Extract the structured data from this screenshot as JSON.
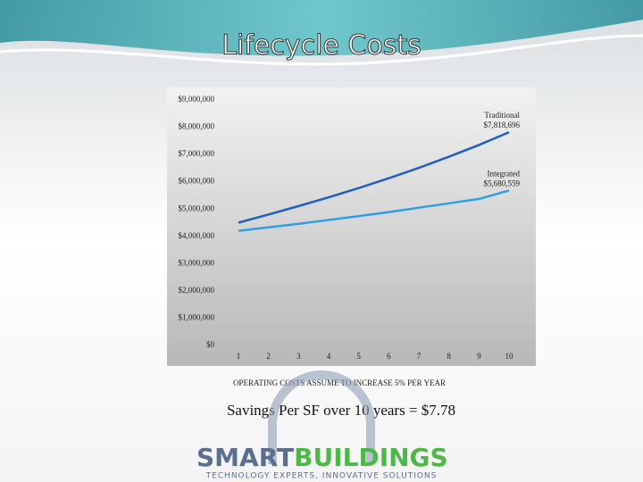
{
  "chart_data": {
    "type": "line",
    "title": "Lifecycle Costs",
    "categories": [
      "1",
      "2",
      "3",
      "4",
      "5",
      "6",
      "7",
      "8",
      "9",
      "10"
    ],
    "series": [
      {
        "name": "Traditional",
        "color": "#1f5fc4",
        "values": [
          4500000,
          4800000,
          5110000,
          5430000,
          5770000,
          6130000,
          6510000,
          6920000,
          7350000,
          7818696
        ],
        "value_labels": [
          null,
          null,
          null,
          null,
          null,
          null,
          null,
          null,
          null,
          "$7,818,696"
        ]
      },
      {
        "name": "Integrated",
        "color": "#2f9fe4",
        "values": [
          4200000,
          4330000,
          4460000,
          4600000,
          4740000,
          4890000,
          5050000,
          5210000,
          5370000,
          5680559
        ],
        "value_labels": [
          null,
          null,
          null,
          null,
          null,
          null,
          null,
          null,
          null,
          "$5,680,559"
        ]
      }
    ],
    "ylim": [
      0,
      9000000
    ],
    "yticks": [
      {
        "value": 0,
        "label": "$0"
      },
      {
        "value": 1000000,
        "label": "$1,000,000"
      },
      {
        "value": 2000000,
        "label": "$2,000,000"
      },
      {
        "value": 3000000,
        "label": "$3,000,000"
      },
      {
        "value": 4000000,
        "label": "$4,000,000"
      },
      {
        "value": 5000000,
        "label": "$5,000,000"
      },
      {
        "value": 6000000,
        "label": "$6,000,000"
      },
      {
        "value": 7000000,
        "label": "$7,000,000"
      },
      {
        "value": 8000000,
        "label": "$8,000,000"
      },
      {
        "value": 9000000,
        "label": "$9,000,000"
      }
    ],
    "grid": false,
    "note": "OPERATING COSTS ASSUME TO INCREASE 5% PER YEAR",
    "summary": "Savings Per SF over 10 years = $7.78"
  },
  "logo": {
    "word1": "SMART",
    "word2": "BUILDINGS",
    "tagline": "TECHNOLOGY EXPERTS, INNOVATIVE SOLUTIONS"
  }
}
